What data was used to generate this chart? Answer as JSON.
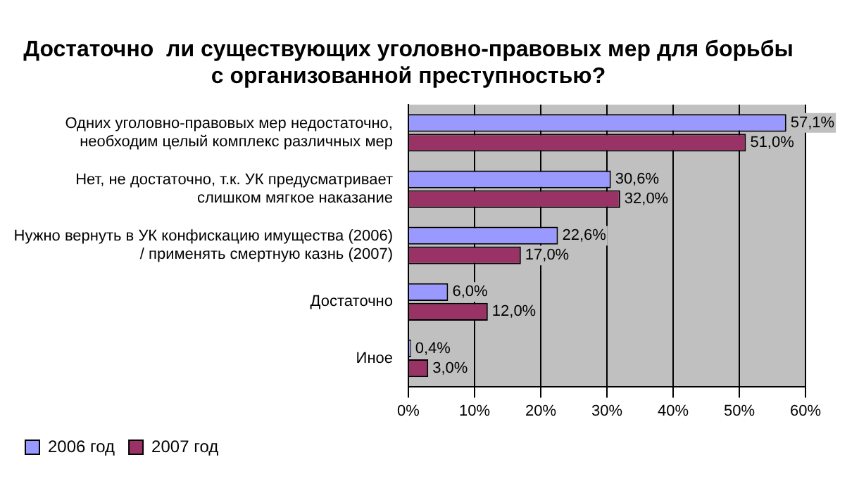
{
  "chart_data": {
    "type": "bar",
    "orientation": "horizontal",
    "title": "Достаточно  ли существующих уголовно-правовых мер для борьбы с организованной преступностью?",
    "categories": [
      "Одних уголовно-правовых мер недостаточно, необходим целый комплекс различных мер",
      "Нет, не достаточно, т.к. УК предусматривает слишком мягкое наказание",
      "Нужно вернуть в УК конфискацию имущества (2006) / применять смертную казнь (2007)",
      "Достаточно",
      "Иное"
    ],
    "series": [
      {
        "name": "2006 год",
        "color": "#9999ff",
        "values": [
          57.1,
          30.6,
          22.6,
          6.0,
          0.4
        ],
        "value_labels": [
          "57,1%",
          "30,6%",
          "22,6%",
          "6,0%",
          "0,4%"
        ]
      },
      {
        "name": "2007 год",
        "color": "#993366",
        "values": [
          51.0,
          32.0,
          17.0,
          12.0,
          3.0
        ],
        "value_labels": [
          "51,0%",
          "32,0%",
          "17,0%",
          "12,0%",
          "3,0%"
        ]
      }
    ],
    "xlim": [
      0,
      60
    ],
    "xticks": [
      {
        "value": 0,
        "label": "0%"
      },
      {
        "value": 10,
        "label": "10%"
      },
      {
        "value": 20,
        "label": "20%"
      },
      {
        "value": 30,
        "label": "30%"
      },
      {
        "value": 40,
        "label": "40%"
      },
      {
        "value": 50,
        "label": "50%"
      },
      {
        "value": 60,
        "label": "60%"
      }
    ],
    "grid": "x",
    "legend": "bottom left"
  }
}
